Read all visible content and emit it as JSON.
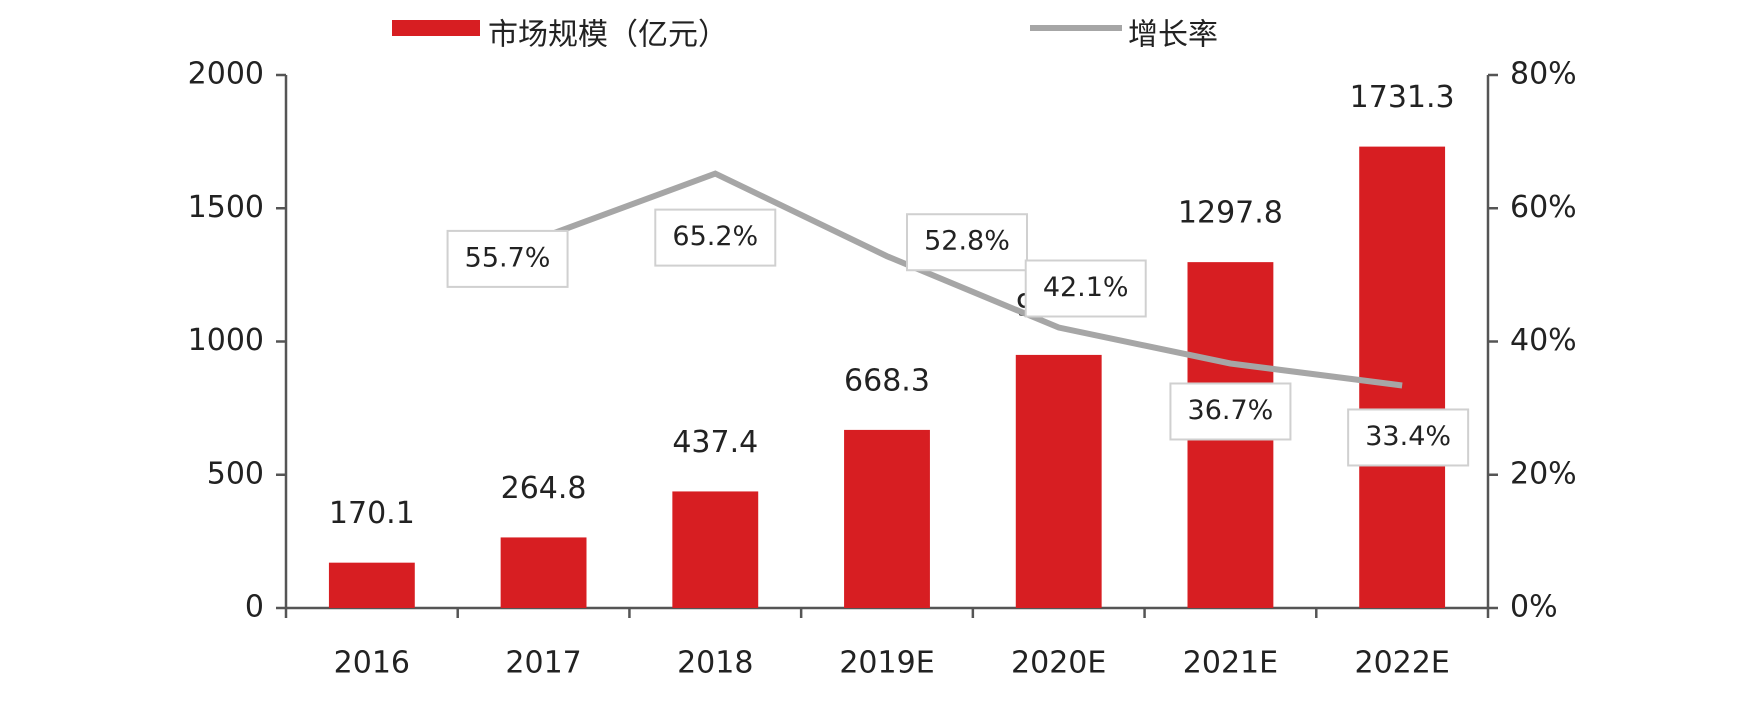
{
  "chart_data": {
    "type": "bar-line",
    "categories": [
      "2016",
      "2017",
      "2018",
      "2019E",
      "2020E",
      "2021E",
      "2022E"
    ],
    "series": [
      {
        "name": "市场规模（亿元）",
        "type": "bar",
        "color": "#d71e22",
        "values": [
          170.1,
          264.8,
          437.4,
          668.3,
          949.7,
          1297.8,
          1731.3
        ]
      },
      {
        "name": "增长率",
        "type": "line",
        "axis": "y2",
        "color": "#a6a6a6",
        "values": [
          null,
          55.7,
          65.2,
          52.8,
          42.1,
          36.7,
          33.4
        ],
        "value_labels": [
          null,
          "55.7%",
          "65.2%",
          "52.8%",
          "42.1%",
          "36.7%",
          "33.4%"
        ]
      }
    ],
    "ylim": [
      0,
      2000
    ],
    "yticks": [
      0,
      500,
      1000,
      1500,
      2000
    ],
    "y2lim": [
      0,
      80
    ],
    "y2ticks": [
      {
        "value": 0,
        "label": "0%"
      },
      {
        "value": 20,
        "label": "20%"
      },
      {
        "value": 40,
        "label": "40%"
      },
      {
        "value": 60,
        "label": "60%"
      },
      {
        "value": 80,
        "label": "80%"
      }
    ]
  }
}
